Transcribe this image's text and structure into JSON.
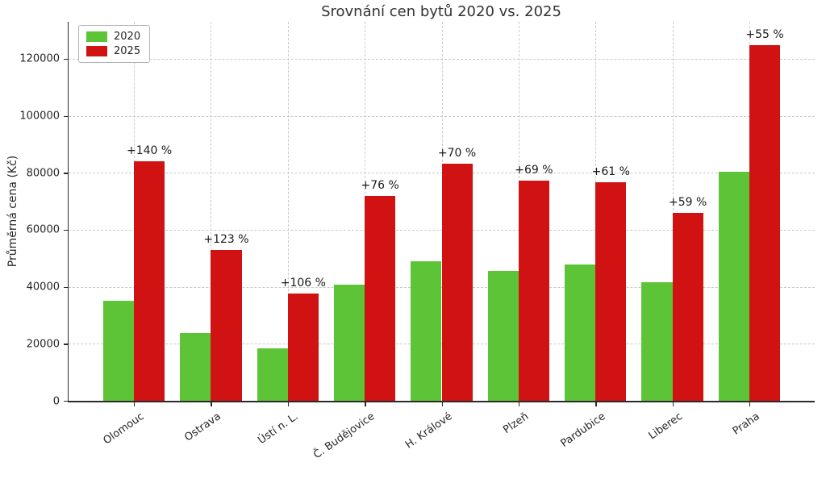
{
  "title": "Srovnání cen bytů 2020 vs. 2025",
  "colors": {
    "series_2020": "#5ec437",
    "series_2025": "#d01212",
    "grid": "#c9c9c9",
    "spine": "#2b2b2b",
    "text": "#262626"
  },
  "legend": {
    "items": [
      {
        "label": "2020",
        "color": "#5ec437"
      },
      {
        "label": "2025",
        "color": "#d01212"
      }
    ]
  },
  "chart_data": {
    "type": "bar",
    "title": "Srovnání cen bytů 2020 vs. 2025",
    "xlabel": "",
    "ylabel": "Průměrná cena (Kč)",
    "categories": [
      "Olomouc",
      "Ostrava",
      "Ústí n. L.",
      "Č. Budějovice",
      "H. Králové",
      "Plzeň",
      "Pardubice",
      "Liberec",
      "Praha"
    ],
    "series": [
      {
        "name": "2020",
        "color": "#5ec437",
        "values": [
          35000,
          23800,
          18300,
          40800,
          49000,
          45700,
          47700,
          41500,
          80500
        ]
      },
      {
        "name": "2025",
        "color": "#d01212",
        "values": [
          84000,
          53000,
          37700,
          71800,
          83300,
          77200,
          76800,
          66000,
          124800
        ]
      }
    ],
    "annotations": [
      "+140 %",
      "+123 %",
      "+106 %",
      "+76 %",
      "+70 %",
      "+69 %",
      "+61 %",
      "+59 %",
      "+55 %"
    ],
    "yticks": [
      0,
      20000,
      40000,
      60000,
      80000,
      100000,
      120000
    ],
    "ylim": [
      0,
      133000
    ],
    "grid": "dashed both axes, below bars",
    "legend_position": "upper left"
  }
}
